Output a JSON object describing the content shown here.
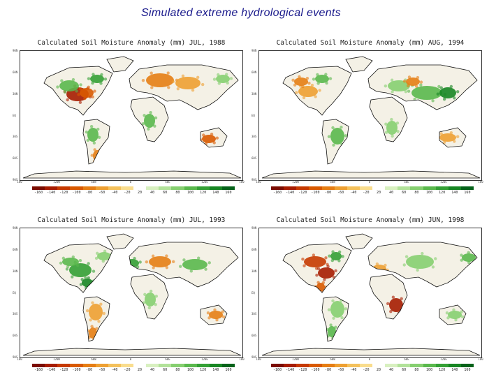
{
  "slide": {
    "title": "Simulated extreme hydrological events"
  },
  "panels": [
    {
      "title": "Calculated Soil Moisture Anomaly (mm) JUL, 1988",
      "pattern": "dry-usa"
    },
    {
      "title": "Calculated Soil Moisture Anomaly (mm) AUG, 1994",
      "pattern": "wet-asia"
    },
    {
      "title": "Calculated Soil Moisture Anomaly (mm) JUL, 1993",
      "pattern": "wet-midwest"
    },
    {
      "title": "Calculated Soil Moisture Anomaly (mm) JUN, 1998",
      "pattern": "dry-gulf"
    }
  ],
  "axes": {
    "lat_labels": [
      "90N",
      "60N",
      "30N",
      "EQ",
      "30S",
      "60S",
      "90S"
    ],
    "lon_labels": [
      "180",
      "120W",
      "60W",
      "0",
      "60E",
      "120E",
      "180"
    ]
  },
  "colorbar": {
    "tick_labels": [
      "-160",
      "-140",
      "-120",
      "-100",
      "-80",
      "-60",
      "-40",
      "-20",
      "20",
      "40",
      "60",
      "80",
      "100",
      "120",
      "140",
      "160"
    ],
    "colors": [
      "#7a0c00",
      "#a61c00",
      "#c63a00",
      "#d95a00",
      "#e67e14",
      "#eea032",
      "#f4c15c",
      "#f9dd8e",
      "#ffffff",
      "#d8f0c0",
      "#b2e29a",
      "#86cf70",
      "#5ab84d",
      "#34a035",
      "#178623",
      "#05621a"
    ]
  }
}
